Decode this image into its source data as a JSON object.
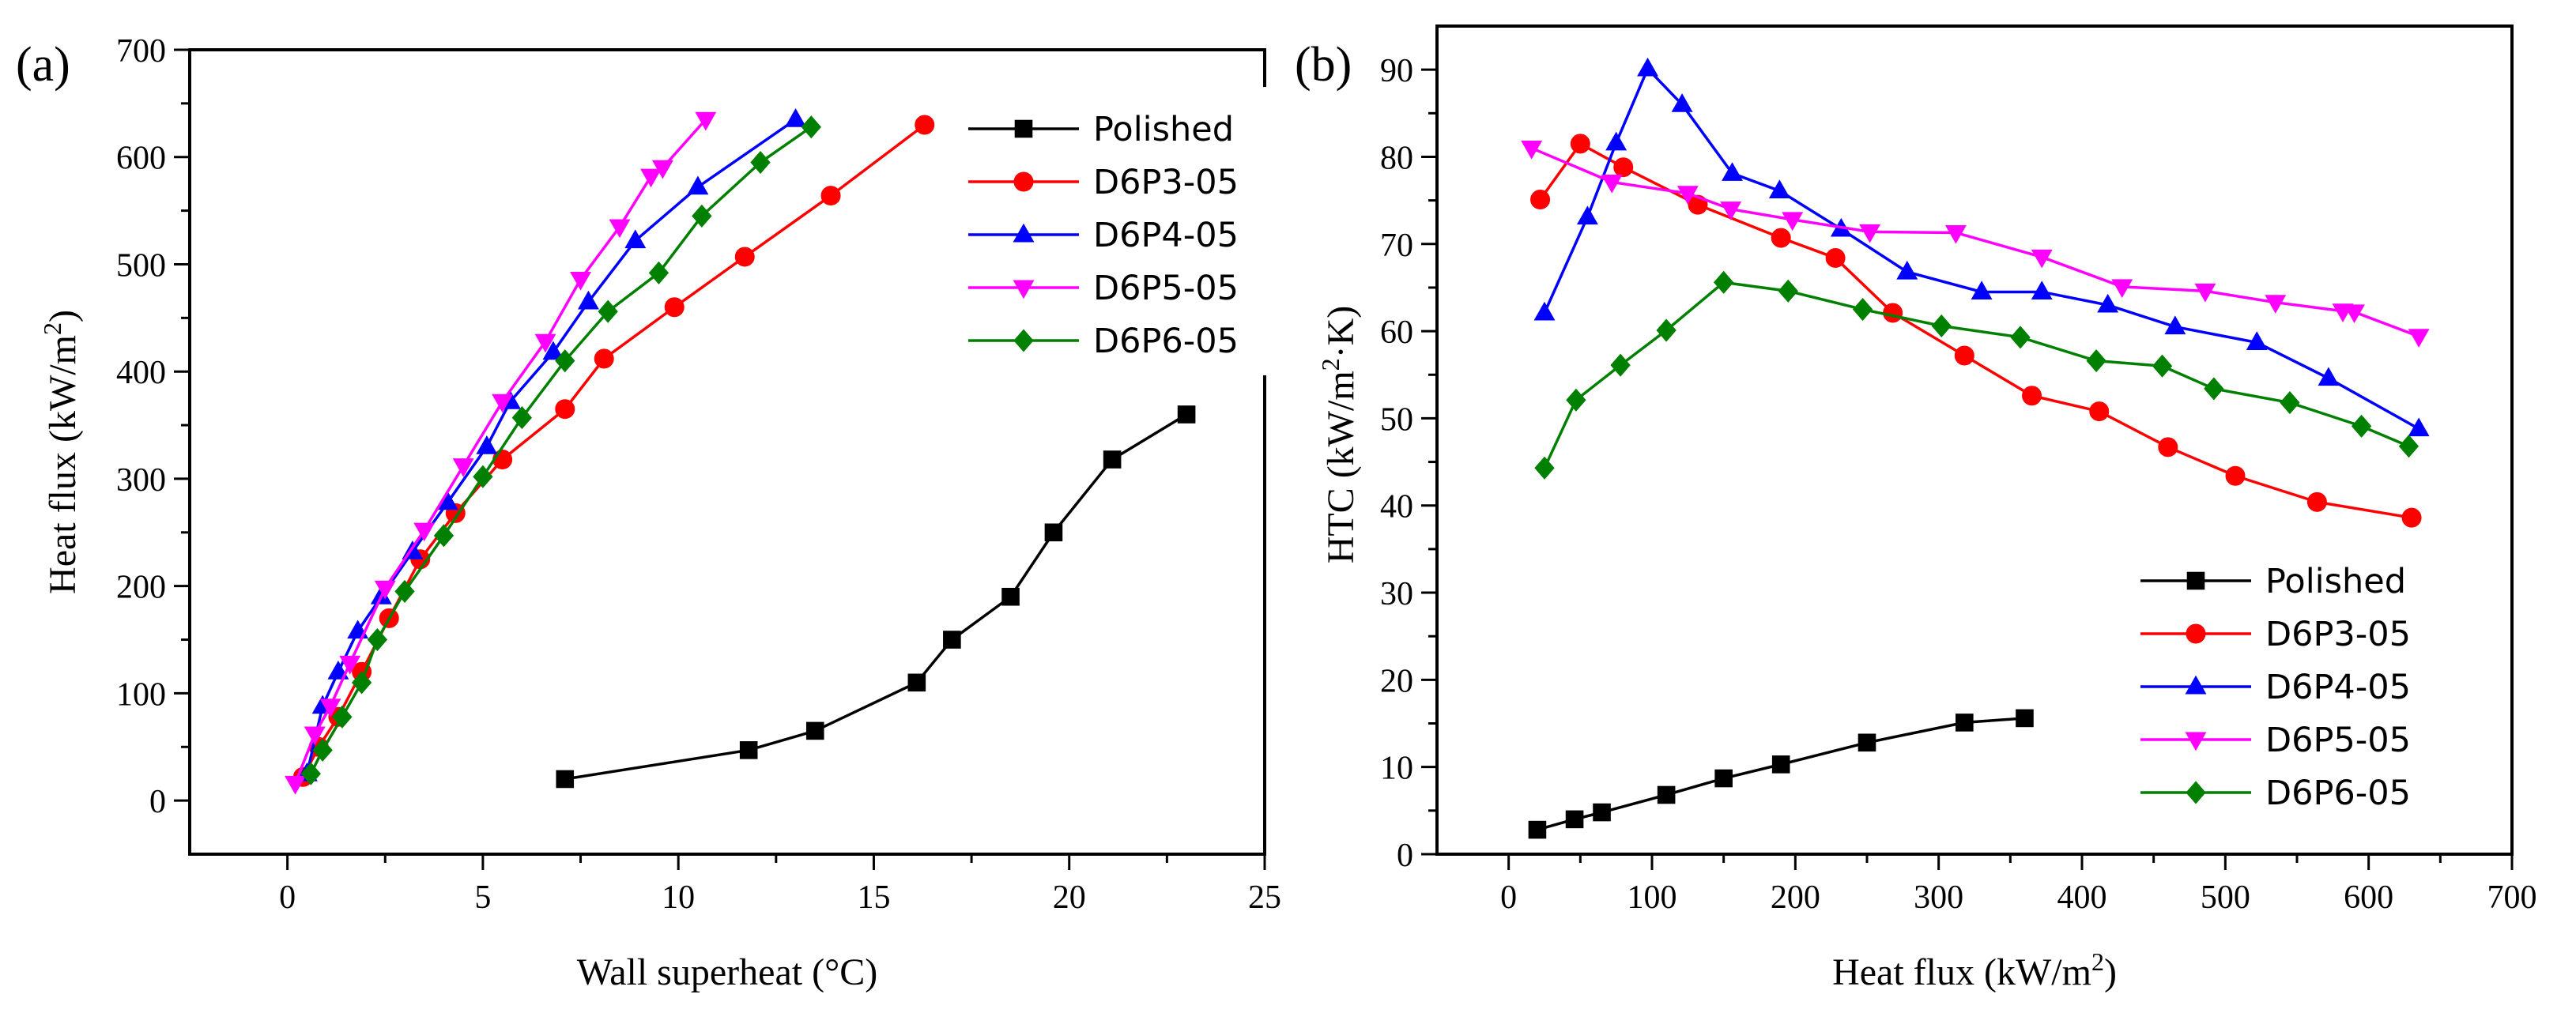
{
  "chart_data": [
    {
      "type": "line",
      "panel_label": "(a)",
      "xlabel": "Wall superheat (°C)",
      "ylabel": "Heat flux (kW/m2)",
      "ylabel_parts": [
        "Heat flux (kW/m",
        "2",
        ")"
      ],
      "xlim": [
        -2.5,
        25
      ],
      "ylim": [
        -50,
        700
      ],
      "xticks": [
        0,
        5,
        10,
        15,
        20,
        25
      ],
      "yticks": [
        0,
        100,
        200,
        300,
        400,
        500,
        600,
        700
      ],
      "legend": "top-right",
      "series": [
        {
          "name": "Polished",
          "color": "#000000",
          "marker": "square",
          "x": [
            7.1,
            11.8,
            13.5,
            16.1,
            17.0,
            18.5,
            19.6,
            21.1,
            23.0
          ],
          "y": [
            20,
            47,
            65,
            110,
            150,
            190,
            250,
            318,
            360
          ]
        },
        {
          "name": "D6P3-05",
          "color": "#ff0000",
          "marker": "circle",
          "x": [
            0.4,
            0.8,
            1.3,
            1.9,
            2.6,
            3.4,
            4.3,
            5.5,
            7.1,
            8.1,
            9.9,
            11.7,
            13.9,
            16.3
          ],
          "y": [
            22,
            50,
            78,
            120,
            170,
            225,
            268,
            318,
            365,
            412,
            460,
            507,
            564,
            630
          ]
        },
        {
          "name": "D6P4-05",
          "color": "#0000ff",
          "marker": "triangle-up",
          "x": [
            0.5,
            0.9,
            1.3,
            1.8,
            2.4,
            3.2,
            4.1,
            5.1,
            5.7,
            6.8,
            7.7,
            8.9,
            10.5,
            13.0
          ],
          "y": [
            25,
            88,
            120,
            158,
            190,
            232,
            278,
            330,
            372,
            418,
            465,
            522,
            572,
            635
          ]
        },
        {
          "name": "D6P5-05",
          "color": "#ff00ff",
          "marker": "triangle-down",
          "x": [
            0.2,
            0.7,
            1.1,
            1.6,
            2.5,
            3.5,
            4.5,
            5.5,
            6.6,
            7.5,
            8.5,
            9.3,
            9.6,
            10.7
          ],
          "y": [
            16,
            62,
            88,
            128,
            198,
            252,
            312,
            372,
            428,
            486,
            535,
            582,
            590,
            635
          ]
        },
        {
          "name": "D6P6-05",
          "color": "#008000",
          "marker": "diamond",
          "x": [
            0.6,
            0.9,
            1.4,
            1.9,
            2.3,
            3.0,
            4.0,
            5.0,
            6.0,
            7.1,
            8.2,
            9.5,
            10.6,
            12.1,
            13.4
          ],
          "y": [
            25,
            47,
            78,
            110,
            150,
            195,
            247,
            302,
            357,
            410,
            456,
            492,
            545,
            595,
            628
          ]
        }
      ]
    },
    {
      "type": "line",
      "panel_label": "(b)",
      "xlabel": "Heat flux (kW/m2)",
      "xlabel_parts": [
        "Heat flux (kW/m",
        "2",
        ")"
      ],
      "ylabel": "HTC (kW/m2·K)",
      "ylabel_parts": [
        "HTC (kW/m",
        "2",
        "·K)"
      ],
      "xlim": [
        -50,
        700
      ],
      "ylim": [
        0,
        95
      ],
      "xticks": [
        0,
        100,
        200,
        300,
        400,
        500,
        600,
        700
      ],
      "yticks": [
        0,
        10,
        20,
        30,
        40,
        50,
        60,
        70,
        80,
        90
      ],
      "legend": "bottom-right",
      "series": [
        {
          "name": "Polished",
          "color": "#000000",
          "marker": "square",
          "x": [
            20,
            46,
            65,
            110,
            150,
            190,
            250,
            318,
            360
          ],
          "y": [
            2.8,
            4.0,
            4.8,
            6.8,
            8.7,
            10.3,
            12.8,
            15.1,
            15.6
          ]
        },
        {
          "name": "D6P3-05",
          "color": "#ff0000",
          "marker": "circle",
          "x": [
            22,
            50,
            80,
            132,
            190,
            228,
            268,
            318,
            365,
            412,
            460,
            507,
            564,
            630
          ],
          "y": [
            75.1,
            81.5,
            78.8,
            74.5,
            70.7,
            68.4,
            62.1,
            57.2,
            52.6,
            50.8,
            46.7,
            43.4,
            40.4,
            38.6
          ]
        },
        {
          "name": "D6P4-05",
          "color": "#0000ff",
          "marker": "triangle-up",
          "x": [
            25,
            55,
            75,
            97,
            121,
            156,
            189,
            232,
            278,
            330,
            372,
            418,
            465,
            522,
            572,
            635
          ],
          "y": [
            62.1,
            73.1,
            81.6,
            90.1,
            86.0,
            78.1,
            76.1,
            71.7,
            66.8,
            64.5,
            64.5,
            63.0,
            60.5,
            58.7,
            54.6,
            48.8
          ]
        },
        {
          "name": "D6P5-05",
          "color": "#ff00ff",
          "marker": "triangle-down",
          "x": [
            16,
            72,
            125,
            155,
            198,
            252,
            312,
            372,
            428,
            486,
            535,
            582,
            590,
            635
          ],
          "y": [
            81.0,
            77.1,
            75.8,
            74.0,
            72.8,
            71.4,
            71.3,
            68.5,
            65.1,
            64.6,
            63.3,
            62.3,
            62.2,
            59.4
          ]
        },
        {
          "name": "D6P6-05",
          "color": "#008000",
          "marker": "diamond",
          "x": [
            25,
            47,
            78,
            110,
            150,
            195,
            247,
            302,
            357,
            410,
            456,
            492,
            545,
            595,
            628
          ],
          "y": [
            44.3,
            52.1,
            56.1,
            60.1,
            65.6,
            64.6,
            62.5,
            60.6,
            59.3,
            56.6,
            56.0,
            53.4,
            51.8,
            49.1,
            46.8
          ]
        }
      ]
    }
  ]
}
